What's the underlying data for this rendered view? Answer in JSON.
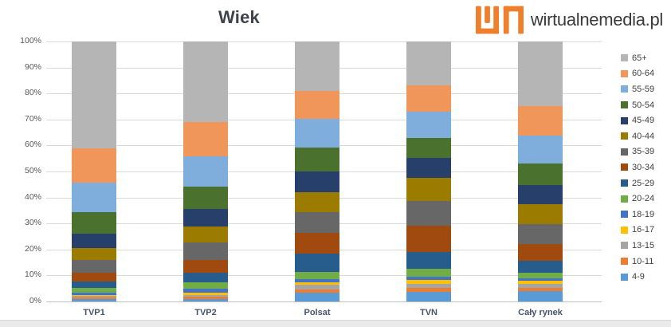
{
  "header": {
    "title": "Wiek"
  },
  "logo": {
    "name": "wirtualnemedia",
    "tld": ".pl",
    "mark_color": "#EE7F2D",
    "text_color": "#3A3A3A"
  },
  "chart_data": {
    "type": "bar",
    "variant": "stacked-100-percent",
    "title": "Wiek",
    "categories": [
      "TVP1",
      "TVP2",
      "Polsat",
      "TVN",
      "Cały rynek"
    ],
    "series": [
      {
        "name": "4-9",
        "color": "#5B9BD5",
        "values": [
          0.9,
          0.9,
          3.5,
          3.8,
          4.0
        ]
      },
      {
        "name": "10-11",
        "color": "#ED7D31",
        "values": [
          0.7,
          0.8,
          1.1,
          1.5,
          1.1
        ]
      },
      {
        "name": "13-15",
        "color": "#A5A5A5",
        "values": [
          0.5,
          0.9,
          1.8,
          1.6,
          1.8
        ]
      },
      {
        "name": "16-17",
        "color": "#FFC000",
        "values": [
          0.5,
          0.7,
          1.0,
          1.3,
          1.0
        ]
      },
      {
        "name": "18-19",
        "color": "#4472C4",
        "values": [
          0.9,
          1.5,
          1.2,
          1.4,
          1.0
        ]
      },
      {
        "name": "20-24",
        "color": "#70AD47",
        "values": [
          1.7,
          2.6,
          2.9,
          3.1,
          2.3
        ]
      },
      {
        "name": "25-29",
        "color": "#265D8C",
        "values": [
          2.6,
          3.6,
          6.8,
          6.2,
          4.4
        ]
      },
      {
        "name": "30-34",
        "color": "#A04A10",
        "values": [
          3.4,
          5.1,
          8.0,
          10.2,
          6.6
        ]
      },
      {
        "name": "35-39",
        "color": "#676767",
        "values": [
          4.9,
          6.6,
          8.2,
          9.5,
          7.7
        ]
      },
      {
        "name": "40-44",
        "color": "#9B7C00",
        "values": [
          4.6,
          6.2,
          7.7,
          8.9,
          7.7
        ]
      },
      {
        "name": "45-49",
        "color": "#263F6B",
        "values": [
          5.5,
          6.7,
          7.9,
          7.7,
          7.2
        ]
      },
      {
        "name": "50-54",
        "color": "#4A722E",
        "values": [
          8.2,
          8.7,
          9.2,
          7.7,
          8.4
        ]
      },
      {
        "name": "55-59",
        "color": "#7FAEDD",
        "values": [
          11.2,
          11.7,
          11.1,
          10.1,
          10.5
        ]
      },
      {
        "name": "60-64",
        "color": "#F0965A",
        "values": [
          13.4,
          13.2,
          10.5,
          10.2,
          11.6
        ]
      },
      {
        "name": "65+",
        "color": "#B5B5B5",
        "values": [
          41.0,
          30.8,
          19.1,
          16.8,
          24.7
        ]
      }
    ],
    "y_axis": {
      "ticks": [
        "0%",
        "10%",
        "20%",
        "30%",
        "40%",
        "50%",
        "60%",
        "70%",
        "80%",
        "90%",
        "100%"
      ],
      "min": 0,
      "max": 100,
      "unit": "%"
    },
    "grid": true,
    "legend_position": "right",
    "legend_order_top_to_bottom": [
      "65+",
      "60-64",
      "55-59",
      "50-54",
      "45-49",
      "40-44",
      "35-39",
      "30-34",
      "25-29",
      "20-24",
      "18-19",
      "16-17",
      "13-15",
      "10-11",
      "4-9"
    ]
  },
  "colors": {
    "gridline": "#D9D9D9",
    "axis_line": "#BFBFBF",
    "tick_label": "#595959",
    "category_label": "#44546A",
    "legend_label": "#404040",
    "title": "#3E434B"
  }
}
